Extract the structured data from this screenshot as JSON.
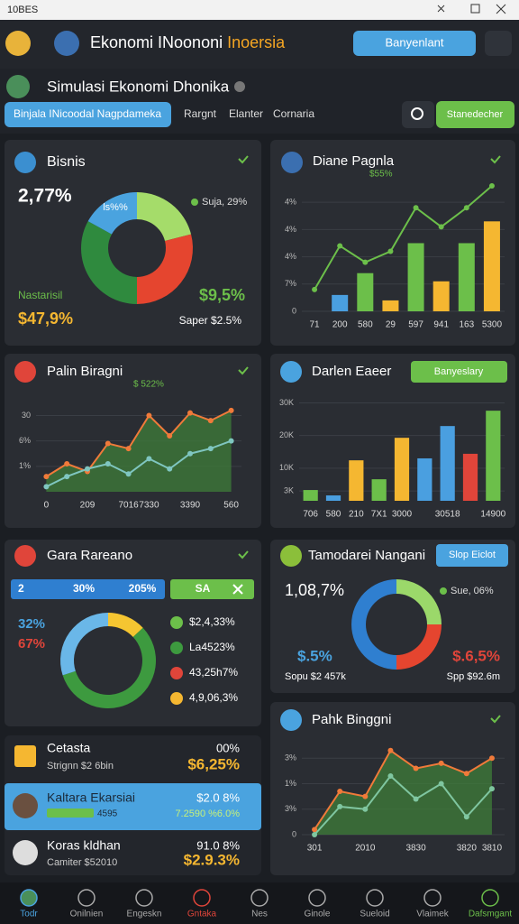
{
  "window": {
    "title": "10BES"
  },
  "header": {
    "app_title": "Ekonomi INoononi",
    "app_title_accent": "Inoersia",
    "button": "Banyenlant"
  },
  "subheader": {
    "title": "Simulasi Ekonomi Dhonika",
    "tabs": [
      "Binjala INicoodal Nagpdameka",
      "Rargnt",
      "Elanter",
      "Cornaria"
    ],
    "action_button": "Stanedecher"
  },
  "cards": [
    {
      "title": "Bisnis",
      "big_value": "2,77%",
      "legend": "Suja, 29%",
      "label": "Nastarisil",
      "value_left": "$47,9%",
      "value_right": "$9,5%",
      "caption": "Saper $2.5%",
      "chart": {
        "type": "donut",
        "label": "ls%%",
        "values": [
          21,
          29,
          33,
          17
        ],
        "colors": [
          "#a5dc6a",
          "#e5452f",
          "#2f8a3e",
          "#4aa3df"
        ]
      }
    },
    {
      "title": "Diane Pagnla",
      "subtitle": "$55%",
      "chart": {
        "type": "bar",
        "categories": [
          "71",
          "200",
          "580",
          "29",
          "597",
          "941",
          "163",
          "5300"
        ],
        "ylim": [
          0,
          48
        ],
        "yticks": [
          0,
          {
            "value": 10,
            "label": "7%"
          },
          {
            "value": 20,
            "label": "4%"
          },
          {
            "value": 30,
            "label": "4%"
          },
          {
            "value": 40,
            "label": "4%"
          }
        ],
        "grid": true,
        "series": [
          {
            "type": "bar",
            "values": [
              null,
              6,
              14,
              4,
              25,
              11,
              25,
              33
            ],
            "colors": [
              null,
              "#4a9fe0",
              "#6cbf4a",
              "#f5b731",
              "#6cbf4a",
              "#f5b731",
              "#6cbf4a",
              "#f5b731"
            ]
          },
          {
            "type": "line",
            "color": "#6cbf4a",
            "values": [
              8,
              24,
              18,
              22,
              38,
              31,
              38,
              46
            ]
          }
        ]
      }
    },
    {
      "title": "Palin Biragni",
      "subtitle": "$ 522%",
      "chart": {
        "type": "area",
        "categories": [
          "0",
          null,
          "209",
          null,
          "7016",
          "7330",
          null,
          "3390",
          null,
          "560"
        ],
        "ylim": [
          0,
          33
        ],
        "yticks": [
          {
            "value": 10,
            "label": "1%"
          },
          {
            "value": 20,
            "label": "6%"
          },
          30
        ],
        "grid": true,
        "series": [
          {
            "type": "area",
            "color": "#f07a3a",
            "fill": "#3f7d3a",
            "values": [
              6,
              11,
              8,
              19,
              17,
              30,
              22,
              31,
              28,
              32
            ]
          },
          {
            "type": "line",
            "color": "#7fc6c0",
            "values": [
              2,
              6,
              9,
              11,
              7,
              13,
              9,
              15,
              17,
              20
            ]
          }
        ]
      }
    },
    {
      "title": "Darlen Eaeer",
      "button": "Banyeslary",
      "chart": {
        "type": "bar",
        "categories": [
          "706",
          "580",
          "210",
          "7X1",
          "3000",
          null,
          "30518",
          null,
          "14900"
        ],
        "ylim": [
          0,
          34000
        ],
        "yticks": [
          {
            "value": 3000,
            "label": "3K"
          },
          {
            "value": 10000,
            "label": "10K"
          },
          {
            "value": 20000,
            "label": "20K"
          },
          {
            "value": 30000,
            "label": "30K"
          }
        ],
        "grid": true,
        "series": [
          {
            "type": "bar",
            "values": [
              3300,
              1650,
              12400,
              6600,
              19300,
              13000,
              22900,
              14400,
              27600
            ],
            "colors": [
              "#6cbf4a",
              "#4a9fe0",
              "#f5b731",
              "#6cbf4a",
              "#f5b731",
              "#4a9fe0",
              "#4a9fe0",
              "#e0453a",
              "#6cbf4a"
            ]
          }
        ]
      }
    },
    {
      "title": "Gara Rareano",
      "tab_left": [
        "2",
        "30%",
        "205%"
      ],
      "tab_right": "SA",
      "side_values": [
        "32%",
        "67%"
      ],
      "legend": [
        "$2,4,33%",
        "La4523%",
        "43,25h7%",
        "4,9,06,3%"
      ],
      "chart": {
        "type": "donut",
        "values": [
          13,
          57,
          30
        ],
        "colors": [
          "#f5c531",
          "#3d9a3f",
          "#6ab7e8"
        ]
      }
    },
    {
      "title": "Tamodarei Nangani",
      "button": "Slop Eiclot",
      "big_value": "1,08,7%",
      "legend": "Sue, 06%",
      "value_left": "$.5%",
      "caption_left": "Sopu $2 457k",
      "value_right": "$.6,5%",
      "caption_right": "Spp $92.6m",
      "chart": {
        "type": "donut",
        "values": [
          25,
          25,
          50
        ],
        "colors": [
          "#9bd86a",
          "#e5452f",
          "#2f7fd0"
        ]
      }
    },
    {
      "title": "Pahk Binggni",
      "chart": {
        "type": "area",
        "categories": [
          "301",
          null,
          "2010",
          null,
          "3830",
          null,
          "3820",
          "3810"
        ],
        "ylim": [
          0,
          40
        ],
        "yticks": [
          0,
          {
            "value": 10,
            "label": "3%"
          },
          {
            "value": 20,
            "label": "1%"
          },
          {
            "value": 30,
            "label": "3%"
          }
        ],
        "grid": true,
        "series": [
          {
            "type": "area",
            "color": "#f07a3a",
            "fill": "#3f7d3a",
            "values": [
              2,
              17,
              15,
              33,
              26,
              28,
              24,
              30
            ]
          },
          {
            "type": "line",
            "color": "#7fc6a0",
            "values": [
              0,
              11,
              10,
              23,
              14,
              20,
              7,
              18
            ]
          }
        ]
      }
    }
  ],
  "list": [
    {
      "name": "Cetasta",
      "detail": "Strignn $2 6bin",
      "change": "00%",
      "value": "$6,25%"
    },
    {
      "name": "Kaltara Ekarsiai",
      "detail": "4595",
      "change": "$2.0 8%",
      "value": "7.2590 %6.0%"
    },
    {
      "name": "Koras kldhan",
      "detail": "Camiter $52010",
      "change": "91.0 8%",
      "value": "$2.9.3%"
    }
  ],
  "nav": [
    "Todr",
    "Onilnien",
    "Engeskn",
    "Gntaka",
    "Nes",
    "Ginole",
    "Sueloid",
    "Vlaimek",
    "Dafsmgant"
  ]
}
